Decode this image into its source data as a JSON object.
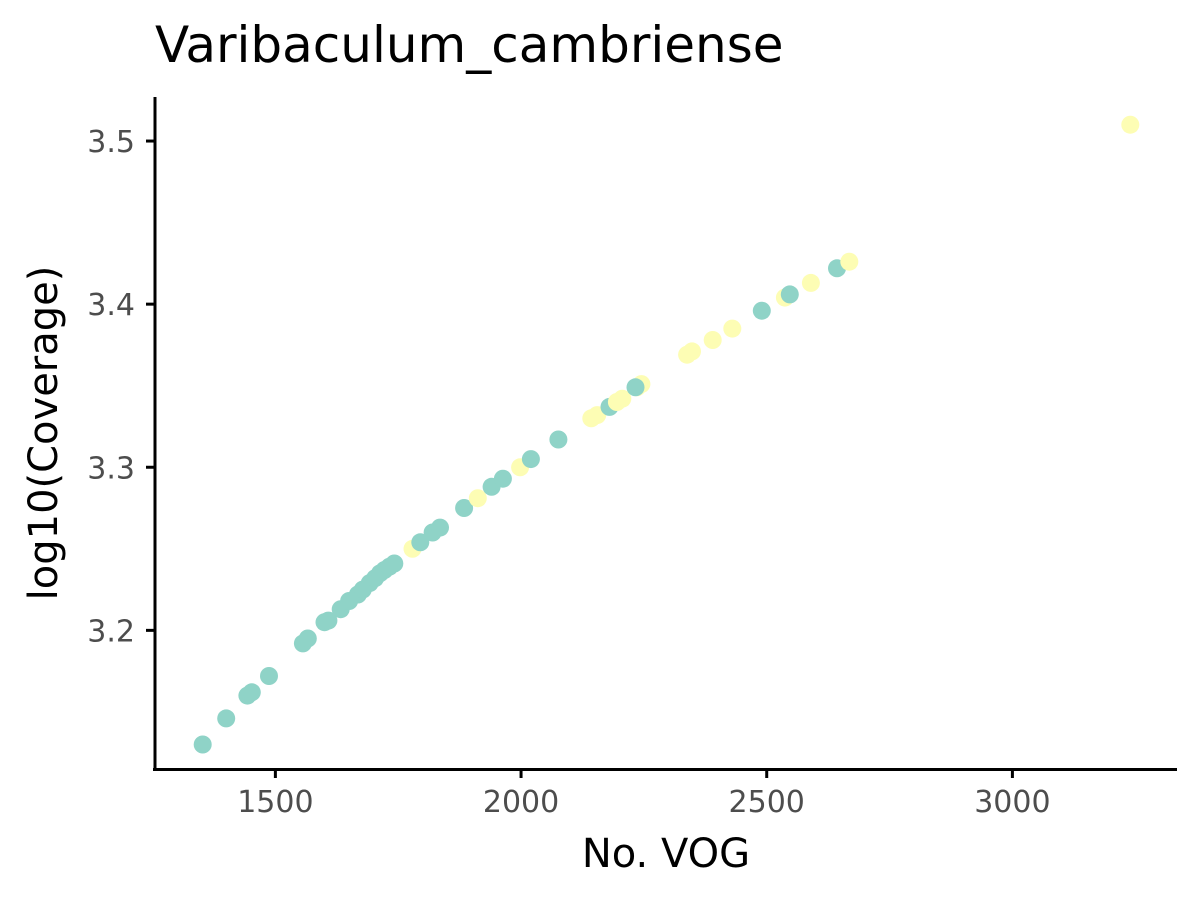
{
  "chart_data": {
    "type": "scatter",
    "title": "Varibaculum_cambriense",
    "xlabel": "No. VOG",
    "ylabel": "log10(Coverage)",
    "xlim": [
      1255,
      3335
    ],
    "ylim": [
      3.115,
      3.527
    ],
    "xticks": [
      1500,
      2000,
      2500,
      3000
    ],
    "yticks": [
      3.2,
      3.3,
      3.4,
      3.5
    ],
    "xtick_labels": [
      "1500",
      "2000",
      "2500",
      "3000"
    ],
    "ytick_labels": [
      "3.2",
      "3.3",
      "3.4",
      "3.5"
    ],
    "grid": false,
    "legend": "none",
    "colors": {
      "teal": "#8fd3c7",
      "yellow": "#fdfdb4"
    },
    "points": [
      {
        "x": 1352,
        "y": 3.13,
        "c": "teal"
      },
      {
        "x": 1400,
        "y": 3.146,
        "c": "teal"
      },
      {
        "x": 1443,
        "y": 3.16,
        "c": "teal"
      },
      {
        "x": 1452,
        "y": 3.162,
        "c": "teal"
      },
      {
        "x": 1487,
        "y": 3.172,
        "c": "teal"
      },
      {
        "x": 1556,
        "y": 3.192,
        "c": "teal"
      },
      {
        "x": 1566,
        "y": 3.195,
        "c": "teal"
      },
      {
        "x": 1600,
        "y": 3.205,
        "c": "teal"
      },
      {
        "x": 1608,
        "y": 3.206,
        "c": "teal"
      },
      {
        "x": 1633,
        "y": 3.213,
        "c": "teal"
      },
      {
        "x": 1650,
        "y": 3.218,
        "c": "teal"
      },
      {
        "x": 1668,
        "y": 3.222,
        "c": "teal"
      },
      {
        "x": 1678,
        "y": 3.225,
        "c": "teal"
      },
      {
        "x": 1692,
        "y": 3.229,
        "c": "teal"
      },
      {
        "x": 1703,
        "y": 3.232,
        "c": "teal"
      },
      {
        "x": 1713,
        "y": 3.235,
        "c": "teal"
      },
      {
        "x": 1722,
        "y": 3.237,
        "c": "teal"
      },
      {
        "x": 1732,
        "y": 3.239,
        "c": "teal"
      },
      {
        "x": 1742,
        "y": 3.241,
        "c": "teal"
      },
      {
        "x": 1779,
        "y": 3.25,
        "c": "yellow"
      },
      {
        "x": 1795,
        "y": 3.254,
        "c": "teal"
      },
      {
        "x": 1820,
        "y": 3.26,
        "c": "teal"
      },
      {
        "x": 1835,
        "y": 3.263,
        "c": "teal"
      },
      {
        "x": 1884,
        "y": 3.275,
        "c": "teal"
      },
      {
        "x": 1912,
        "y": 3.281,
        "c": "yellow"
      },
      {
        "x": 1940,
        "y": 3.288,
        "c": "teal"
      },
      {
        "x": 1963,
        "y": 3.293,
        "c": "teal"
      },
      {
        "x": 1998,
        "y": 3.3,
        "c": "yellow"
      },
      {
        "x": 2020,
        "y": 3.305,
        "c": "teal"
      },
      {
        "x": 2076,
        "y": 3.317,
        "c": "teal"
      },
      {
        "x": 2143,
        "y": 3.33,
        "c": "yellow"
      },
      {
        "x": 2155,
        "y": 3.332,
        "c": "yellow"
      },
      {
        "x": 2180,
        "y": 3.337,
        "c": "teal"
      },
      {
        "x": 2195,
        "y": 3.34,
        "c": "yellow"
      },
      {
        "x": 2206,
        "y": 3.342,
        "c": "yellow"
      },
      {
        "x": 2236,
        "y": 3.349,
        "c": "yellow"
      },
      {
        "x": 2245,
        "y": 3.351,
        "c": "yellow"
      },
      {
        "x": 2233,
        "y": 3.349,
        "c": "teal"
      },
      {
        "x": 2338,
        "y": 3.369,
        "c": "yellow"
      },
      {
        "x": 2348,
        "y": 3.371,
        "c": "yellow"
      },
      {
        "x": 2390,
        "y": 3.378,
        "c": "yellow"
      },
      {
        "x": 2430,
        "y": 3.385,
        "c": "yellow"
      },
      {
        "x": 2490,
        "y": 3.396,
        "c": "teal"
      },
      {
        "x": 2537,
        "y": 3.404,
        "c": "yellow"
      },
      {
        "x": 2547,
        "y": 3.406,
        "c": "teal"
      },
      {
        "x": 2590,
        "y": 3.413,
        "c": "yellow"
      },
      {
        "x": 2643,
        "y": 3.422,
        "c": "teal"
      },
      {
        "x": 2668,
        "y": 3.426,
        "c": "yellow"
      },
      {
        "x": 3240,
        "y": 3.51,
        "c": "yellow"
      }
    ]
  }
}
